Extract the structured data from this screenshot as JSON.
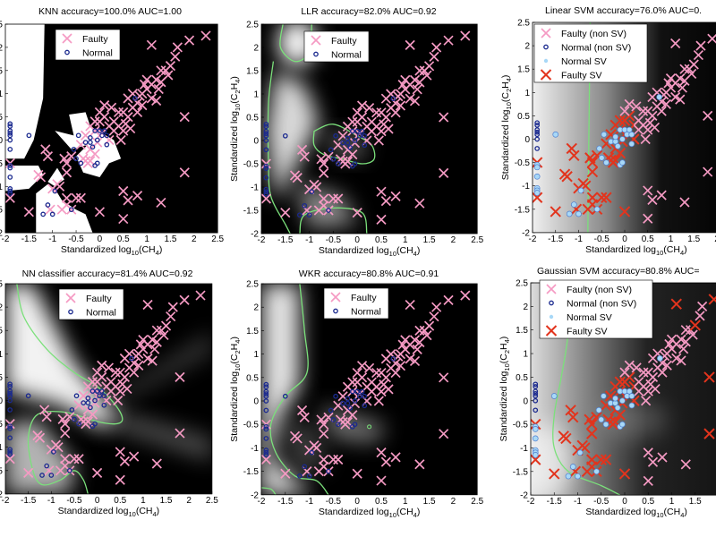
{
  "chart_data": {
    "type": "scatter",
    "xlim": [
      -2,
      2.5
    ],
    "ylim": [
      -2,
      2.5
    ],
    "xticks": [
      "-2",
      "-1.5",
      "-1",
      "-0.5",
      "0",
      "0.5",
      "1",
      "1.5",
      "2",
      "2.5"
    ],
    "yticks": [
      "-2",
      "-1.5",
      "-1",
      "-0.5",
      "0",
      "0.5",
      "1",
      "1.5",
      "2",
      "2.5"
    ],
    "xlabel_parts": [
      "Standardized  log",
      "10",
      "(CH",
      "4",
      ")"
    ],
    "ylabel_parts": [
      "Standardized  log",
      "10",
      "(C",
      "2",
      "H",
      "4",
      ")"
    ],
    "colors": {
      "faulty": "#f59ac3",
      "normal": "#1b2a8f",
      "normal_sv": "#a8d8f7",
      "faulty_sv": "#e2341d",
      "boundary": "#7be07b"
    },
    "dataset": {
      "normal": [
        [
          -1.9,
          0.35
        ],
        [
          -1.9,
          0.3
        ],
        [
          -1.9,
          0.2
        ],
        [
          -1.9,
          0.15
        ],
        [
          -1.9,
          0.1
        ],
        [
          -1.9,
          0
        ],
        [
          -1.9,
          -0.2
        ],
        [
          -1.9,
          -0.55
        ],
        [
          -1.9,
          -0.6
        ],
        [
          -1.9,
          -0.8
        ],
        [
          -1.9,
          -1.05
        ],
        [
          -1.9,
          -1.1
        ],
        [
          -1.9,
          -1.15
        ],
        [
          -1.5,
          0.1
        ],
        [
          -0.45,
          0.1
        ],
        [
          -0.3,
          -0.05
        ],
        [
          -0.2,
          -0.05
        ],
        [
          -0.1,
          0.2
        ],
        [
          0,
          0.2
        ],
        [
          0.1,
          0.2
        ],
        [
          0.05,
          0.1
        ],
        [
          0.15,
          0.1
        ],
        [
          -0.05,
          0
        ],
        [
          0.15,
          -0.1
        ],
        [
          -0.15,
          -0.15
        ],
        [
          -0.55,
          -0.2
        ],
        [
          -0.5,
          -0.4
        ],
        [
          -0.4,
          -0.5
        ],
        [
          -0.1,
          -0.55
        ],
        [
          -0.05,
          -0.5
        ],
        [
          0.75,
          0.9
        ],
        [
          -1.2,
          -1.6
        ],
        [
          -1.1,
          -1.4
        ],
        [
          -1,
          -1.6
        ],
        [
          -0.6,
          -1.5
        ],
        [
          -0.2,
          0.05
        ],
        [
          -0.95,
          -1.1
        ]
      ],
      "faulty": [
        [
          -0.3,
          0.1
        ],
        [
          -0.2,
          0.3
        ],
        [
          -0.1,
          0.2
        ],
        [
          0,
          0.4
        ],
        [
          0.1,
          0.5
        ],
        [
          0.2,
          0.3
        ],
        [
          0.3,
          0.4
        ],
        [
          0.4,
          0.3
        ],
        [
          0.5,
          0.6
        ],
        [
          0.6,
          0.5
        ],
        [
          0.7,
          0.7
        ],
        [
          0.8,
          0.8
        ],
        [
          0.9,
          1.0
        ],
        [
          1.0,
          1.1
        ],
        [
          1.1,
          1.2
        ],
        [
          1.2,
          1.3
        ],
        [
          1.3,
          1.5
        ],
        [
          1.4,
          1.5
        ],
        [
          1.5,
          1.6
        ],
        [
          1.6,
          1.8
        ],
        [
          1.65,
          2.0
        ],
        [
          1.9,
          2.15
        ],
        [
          2.25,
          2.25
        ],
        [
          1.1,
          2.05
        ],
        [
          0.6,
          0.9
        ],
        [
          0.7,
          1.0
        ],
        [
          0.8,
          0.6
        ],
        [
          0.9,
          0.75
        ],
        [
          1.1,
          0.9
        ],
        [
          1.2,
          0.85
        ],
        [
          0.4,
          0.6
        ],
        [
          0.3,
          0.2
        ],
        [
          0.5,
          0.2
        ],
        [
          0.2,
          0.0
        ],
        [
          0.0,
          0.6
        ],
        [
          -0.1,
          0.4
        ],
        [
          0.25,
          0.7
        ],
        [
          1.0,
          1.3
        ],
        [
          1.3,
          1.25
        ],
        [
          1.45,
          1.4
        ],
        [
          0.55,
          0.35
        ],
        [
          0.45,
          0.0
        ],
        [
          0.65,
          0.25
        ],
        [
          0.85,
          0.95
        ],
        [
          0.95,
          1.2
        ],
        [
          1.25,
          1.1
        ],
        [
          0.1,
          0.75
        ],
        [
          1.8,
          0.5
        ],
        [
          1.8,
          -0.7
        ],
        [
          0.5,
          -1.1
        ],
        [
          0.6,
          -1.3
        ],
        [
          0.8,
          -1.2
        ],
        [
          1.3,
          -1.35
        ],
        [
          0.5,
          -1.7
        ],
        [
          0,
          -1.55
        ],
        [
          -1.5,
          -1.55
        ],
        [
          -1.9,
          -0.5
        ],
        [
          -1.9,
          -1.25
        ],
        [
          -1.15,
          -0.2
        ],
        [
          -1.1,
          -0.35
        ],
        [
          -1.3,
          -0.75
        ],
        [
          -1.25,
          -0.8
        ],
        [
          -0.75,
          -0.4
        ],
        [
          -0.7,
          -0.5
        ],
        [
          -0.7,
          -0.7
        ],
        [
          -0.6,
          -0.35
        ],
        [
          -0.3,
          -0.45
        ],
        [
          -0.25,
          -0.5
        ],
        [
          -0.2,
          -0.45
        ],
        [
          -0.05,
          -0.05
        ],
        [
          -0.2,
          -0.2
        ],
        [
          -0.1,
          -0.3
        ],
        [
          -0.9,
          -0.95
        ],
        [
          -0.85,
          -1.0
        ],
        [
          -1.0,
          -1.05
        ],
        [
          -0.7,
          -1.25
        ],
        [
          -0.7,
          -1.4
        ],
        [
          -0.6,
          -1.5
        ],
        [
          -0.8,
          -1.5
        ],
        [
          -1.05,
          -1.5
        ],
        [
          -0.5,
          -1.25
        ],
        [
          -0.4,
          -1.25
        ],
        [
          -0.35,
          -0.4
        ],
        [
          0.05,
          0.15
        ],
        [
          -0.4,
          -0.1
        ]
      ]
    },
    "panels": [
      {
        "method": "knn",
        "title": "KNN accuracy=100.0% AUC=1.00",
        "legend": [
          "Faulty",
          "Normal"
        ],
        "legend_position": "top-left",
        "show_ylabel": false
      },
      {
        "method": "llr",
        "title": "LLR accuracy=82.0% AUC=0.92",
        "legend": [
          "Faulty",
          "Normal"
        ],
        "legend_position": "top-left",
        "show_ylabel": true
      },
      {
        "method": "linear_svm",
        "title": "Linear SVM accuracy=76.0% AUC=0.",
        "legend": [
          "Faulty (non SV)",
          "Normal (non SV)",
          "Normal SV",
          "Faulty SV"
        ],
        "legend_position": "top-left",
        "show_ylabel": true
      },
      {
        "method": "nn",
        "title": "NN classifier accuracy=81.4% AUC=0.92",
        "legend": [
          "Faulty",
          "Normal"
        ],
        "legend_position": "top-left",
        "show_ylabel": false
      },
      {
        "method": "wkr",
        "title": "WKR accuracy=80.8% AUC=0.91",
        "legend": [
          "Faulty",
          "Normal"
        ],
        "legend_position": "top-left",
        "show_ylabel": true
      },
      {
        "method": "gaussian_svm",
        "title": "Gaussian SVM accuracy=80.8% AUC=",
        "legend": [
          "Faulty (non SV)",
          "Normal (non SV)",
          "Normal SV",
          "Faulty SV"
        ],
        "legend_position": "top-left",
        "show_ylabel": true
      }
    ]
  }
}
